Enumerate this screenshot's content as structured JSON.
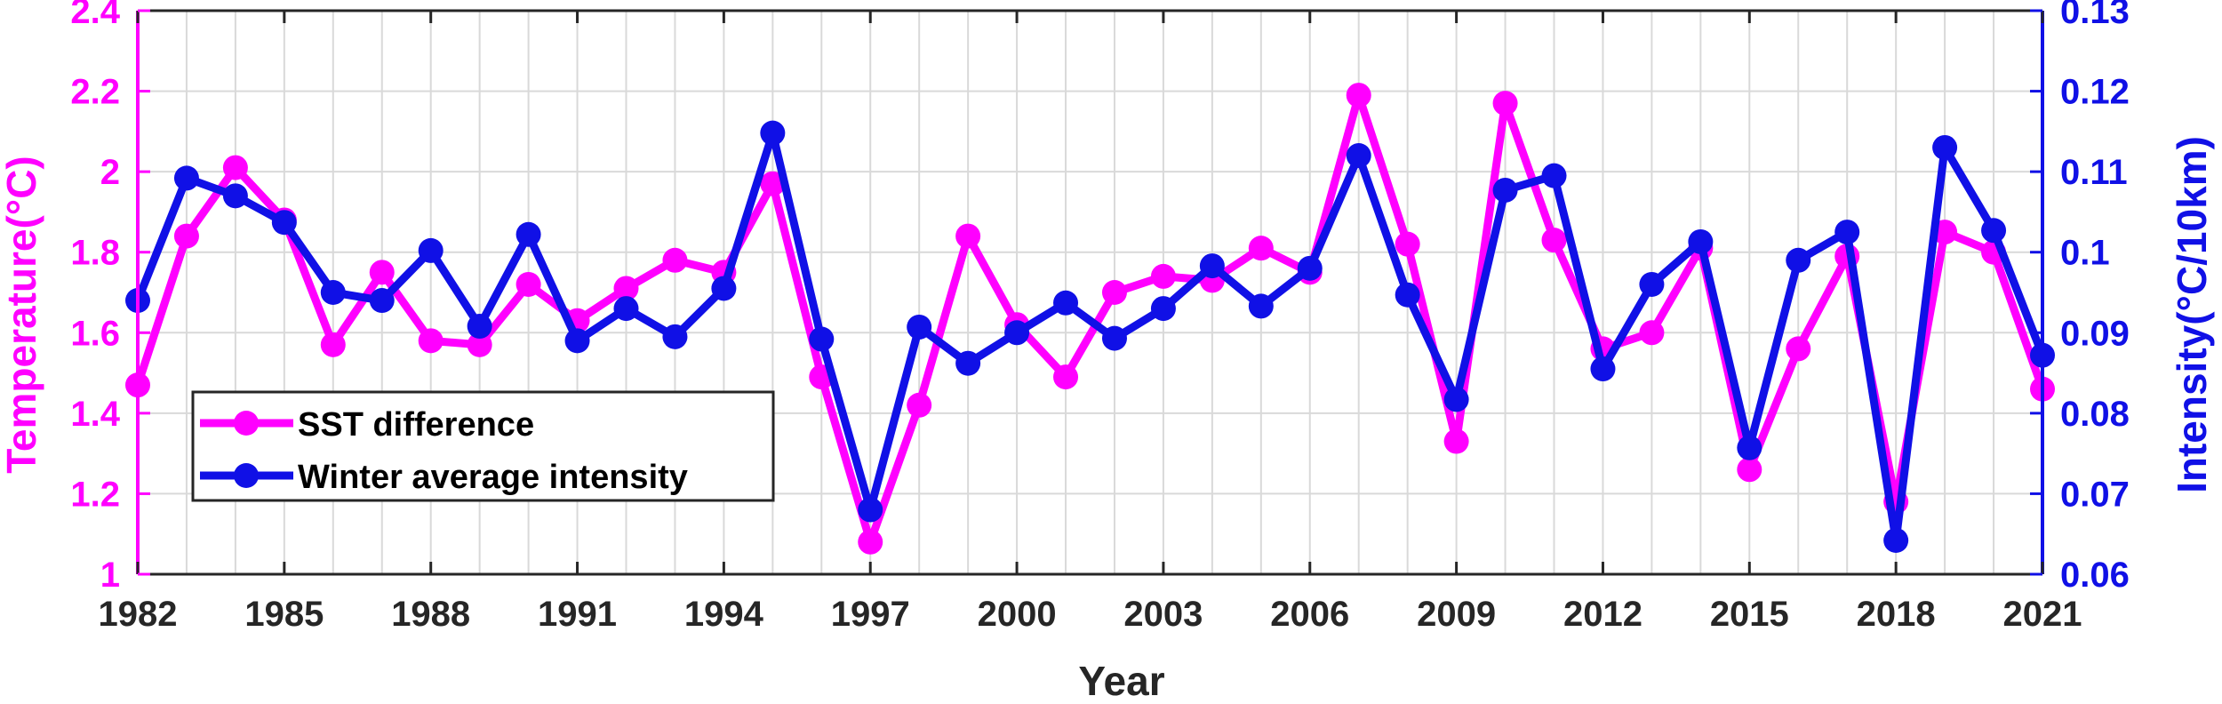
{
  "chart_data": {
    "type": "line",
    "xlabel": "Year",
    "ylabel_left": "Temperature(°C)",
    "ylabel_right": "Intensity(°C/10km)",
    "xlim": [
      1982,
      2021
    ],
    "ylim_left": [
      1,
      2.4
    ],
    "ylim_right": [
      0.06,
      0.13
    ],
    "x_ticks": [
      1982,
      1985,
      1988,
      1991,
      1994,
      1997,
      2000,
      2003,
      2006,
      2009,
      2012,
      2015,
      2018,
      2021
    ],
    "y_left_ticks": [
      "1",
      "1.2",
      "1.4",
      "1.6",
      "1.8",
      "2",
      "2.2",
      "2.4"
    ],
    "y_left_tick_values": [
      1,
      1.2,
      1.4,
      1.6,
      1.8,
      2,
      2.2,
      2.4
    ],
    "y_right_ticks": [
      "0.06",
      "0.07",
      "0.08",
      "0.09",
      "0.1",
      "0.11",
      "0.12",
      "0.13"
    ],
    "y_right_tick_values": [
      0.06,
      0.07,
      0.08,
      0.09,
      0.1,
      0.11,
      0.12,
      0.13
    ],
    "grid": true,
    "legend_position": "bottom-left",
    "x": [
      1982,
      1983,
      1984,
      1985,
      1986,
      1987,
      1988,
      1989,
      1990,
      1991,
      1992,
      1993,
      1994,
      1995,
      1996,
      1997,
      1998,
      1999,
      2000,
      2001,
      2002,
      2003,
      2004,
      2005,
      2006,
      2007,
      2008,
      2009,
      2010,
      2011,
      2012,
      2013,
      2014,
      2015,
      2016,
      2017,
      2018,
      2019,
      2020,
      2021
    ],
    "series": [
      {
        "name": "SST difference",
        "axis": "left",
        "color": "#ff00ff",
        "values": [
          1.47,
          1.84,
          2.01,
          1.88,
          1.57,
          1.75,
          1.58,
          1.57,
          1.72,
          1.63,
          1.71,
          1.78,
          1.75,
          1.97,
          1.49,
          1.08,
          1.42,
          1.84,
          1.62,
          1.49,
          1.7,
          1.74,
          1.73,
          1.81,
          1.75,
          2.19,
          1.82,
          1.33,
          2.17,
          1.83,
          1.56,
          1.6,
          1.81,
          1.26,
          1.56,
          1.79,
          1.18,
          1.85,
          1.8,
          1.46
        ]
      },
      {
        "name": "Winter average intensity",
        "axis": "right",
        "color": "#1010e6",
        "values": [
          0.094,
          0.1092,
          0.107,
          0.1037,
          0.095,
          0.094,
          0.1002,
          0.0908,
          0.1022,
          0.089,
          0.093,
          0.0895,
          0.0955,
          0.1148,
          0.0892,
          0.068,
          0.0907,
          0.0862,
          0.09,
          0.0937,
          0.0893,
          0.093,
          0.0983,
          0.0933,
          0.098,
          0.112,
          0.0947,
          0.0817,
          0.1077,
          0.1095,
          0.0855,
          0.096,
          0.1013,
          0.0757,
          0.099,
          0.1025,
          0.0642,
          0.113,
          0.1027,
          0.0872
        ]
      }
    ]
  }
}
